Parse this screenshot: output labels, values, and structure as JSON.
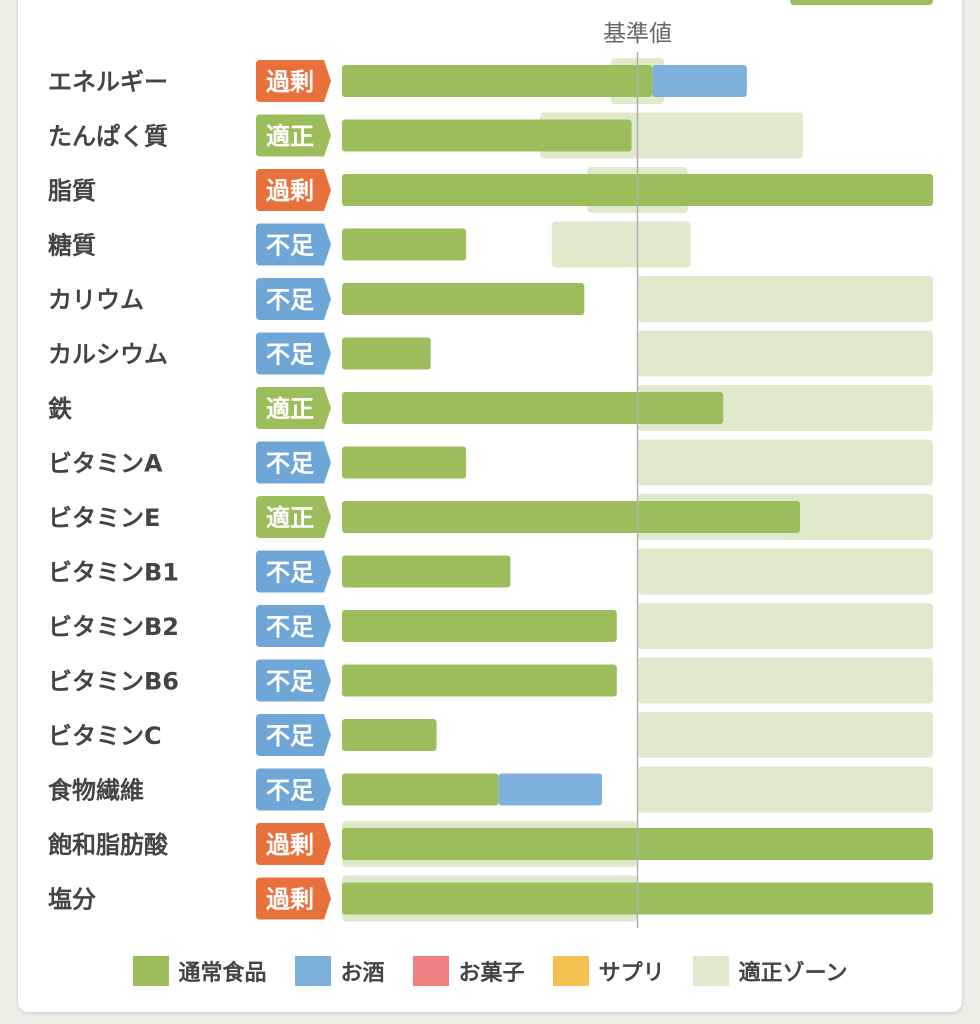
{
  "chart_data": {
    "type": "bar",
    "reference_label": "基準値",
    "categories": [
      "エネルギー",
      "たんぱく質",
      "脂質",
      "糖質",
      "カリウム",
      "カルシウム",
      "鉄",
      "ビタミンA",
      "ビタミンE",
      "ビタミンB1",
      "ビタミンB2",
      "ビタミンB6",
      "ビタミンC",
      "食物繊維",
      "飽和脂肪酸",
      "塩分"
    ],
    "status": [
      "過剰",
      "適正",
      "過剰",
      "不足",
      "不足",
      "不足",
      "適正",
      "不足",
      "適正",
      "不足",
      "不足",
      "不足",
      "不足",
      "不足",
      "過剰",
      "過剰"
    ],
    "series": [
      {
        "name": "通常食品",
        "values": [
          105,
          98,
          200,
          42,
          82,
          30,
          129,
          42,
          155,
          57,
          93,
          93,
          32,
          53,
          200,
          200
        ]
      },
      {
        "name": "お酒",
        "values": [
          32,
          0,
          0,
          0,
          0,
          0,
          0,
          0,
          0,
          0,
          0,
          0,
          0,
          35,
          0,
          0
        ]
      },
      {
        "name": "お菓子",
        "values": [
          0,
          0,
          0,
          0,
          0,
          0,
          0,
          0,
          0,
          0,
          0,
          0,
          0,
          0,
          0,
          0
        ]
      },
      {
        "name": "サプリ",
        "values": [
          0,
          0,
          0,
          0,
          0,
          0,
          0,
          0,
          0,
          0,
          0,
          0,
          0,
          0,
          0,
          0
        ]
      }
    ],
    "zones": [
      [
        91,
        109
      ],
      [
        67,
        156
      ],
      [
        83,
        117
      ],
      [
        71,
        118
      ],
      [
        100,
        200
      ],
      [
        100,
        200
      ],
      [
        100,
        200
      ],
      [
        100,
        200
      ],
      [
        100,
        200
      ],
      [
        100,
        200
      ],
      [
        100,
        200
      ],
      [
        100,
        200
      ],
      [
        100,
        200
      ],
      [
        100,
        200
      ],
      [
        0,
        100
      ],
      [
        0,
        100
      ]
    ],
    "xlim": [
      0,
      200
    ],
    "reference_value": 100
  },
  "status_colors": {
    "過剰": "#e8703a",
    "適正": "#9bbd5c",
    "不足": "#6fa6d8"
  },
  "legend": [
    {
      "label": "通常食品",
      "color": "#9bbd5c"
    },
    {
      "label": "お酒",
      "color": "#7eb0dc"
    },
    {
      "label": "お菓子",
      "color": "#f08080"
    },
    {
      "label": "サプリ",
      "color": "#f4c150"
    },
    {
      "label": "適正ゾーン",
      "color": "#dfeacd"
    }
  ]
}
